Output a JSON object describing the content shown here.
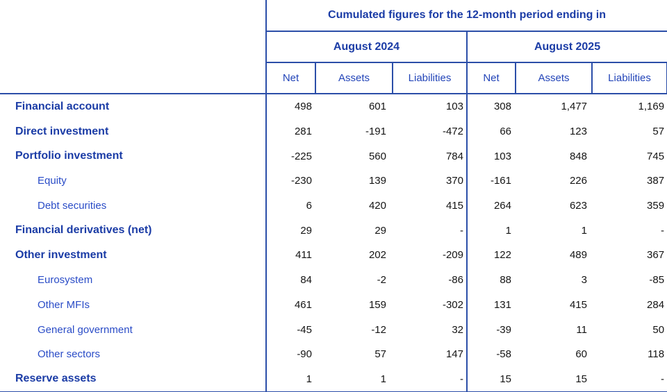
{
  "colors": {
    "border_blue": "#2b4ea8",
    "header_text_blue": "#1b3ca6",
    "measure_text_blue": "#2244b8",
    "subrow_text_blue": "#2a4cc7",
    "value_text": "#141414",
    "background": "#ffffff"
  },
  "header": {
    "title": "Cumulated figures for the 12-month period ending in",
    "periods": [
      "August 2024",
      "August 2025"
    ],
    "measures": [
      "Net",
      "Assets",
      "Liabilities"
    ]
  },
  "rows": [
    {
      "label": "Financial account",
      "level": 0,
      "values": [
        "498",
        "601",
        "103",
        "308",
        "1,477",
        "1,169"
      ]
    },
    {
      "label": "Direct investment",
      "level": 0,
      "values": [
        "281",
        "-191",
        "-472",
        "66",
        "123",
        "57"
      ]
    },
    {
      "label": "Portfolio investment",
      "level": 0,
      "values": [
        "-225",
        "560",
        "784",
        "103",
        "848",
        "745"
      ]
    },
    {
      "label": "Equity",
      "level": 1,
      "values": [
        "-230",
        "139",
        "370",
        "-161",
        "226",
        "387"
      ]
    },
    {
      "label": "Debt securities",
      "level": 1,
      "values": [
        "6",
        "420",
        "415",
        "264",
        "623",
        "359"
      ]
    },
    {
      "label": "Financial derivatives (net)",
      "level": 0,
      "values": [
        "29",
        "29",
        "-",
        "1",
        "1",
        "-"
      ]
    },
    {
      "label": "Other investment",
      "level": 0,
      "values": [
        "411",
        "202",
        "-209",
        "122",
        "489",
        "367"
      ]
    },
    {
      "label": "Eurosystem",
      "level": 1,
      "values": [
        "84",
        "-2",
        "-86",
        "88",
        "3",
        "-85"
      ]
    },
    {
      "label": "Other MFIs",
      "level": 1,
      "values": [
        "461",
        "159",
        "-302",
        "131",
        "415",
        "284"
      ]
    },
    {
      "label": "General government",
      "level": 1,
      "values": [
        "-45",
        "-12",
        "32",
        "-39",
        "11",
        "50"
      ]
    },
    {
      "label": "Other sectors",
      "level": 1,
      "values": [
        "-90",
        "57",
        "147",
        "-58",
        "60",
        "118"
      ]
    },
    {
      "label": "Reserve assets",
      "level": 0,
      "values": [
        "1",
        "1",
        "-",
        "15",
        "15",
        "-"
      ]
    }
  ]
}
